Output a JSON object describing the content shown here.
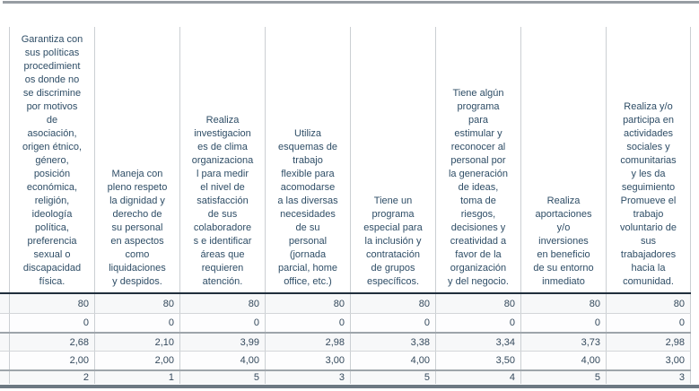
{
  "chart_data": {
    "type": "table",
    "description_visible": "Cropped statistics output table: 8 variable columns, 5 unlabeled statistic rows",
    "columns": [
      "Garantiza con\nsus políticas\nprocedimient\nos donde no\nse discrimine\npor motivos\nde\nasociación,\norigen étnico,\ngénero,\nposición\neconómica,\nreligión,\nideología\npolítica,\npreferencia\nsexual o\ndiscapacidad\nfísica.",
      "Maneja con\npleno respeto\nla dignidad y\nderecho de\nsu personal\nen aspectos\ncomo\nliquidaciones\ny despidos.",
      "Realiza\ninvestigacion\nes de clima\norganizaciona\nl para medir\nel nivel de\nsatisfacción\nde sus\ncolaboradore\ns e identificar\náreas que\nrequieren\natención.",
      "Utiliza\nesquemas de\ntrabajo\nflexible para\nacomodarse\na las diversas\nnecesidades\nde su\npersonal\n(jornada\nparcial, home\noffice, etc.)",
      "Tiene un\nprograma\nespecial para\nla inclusión y\ncontratación\nde grupos\nespecíficos.",
      "Tiene algún\nprograma\npara\nestimular y\nreconocer al\npersonal por\nla generación\nde ideas,\ntoma de\nriesgos,\ndecisiones y\ncreatividad a\nfavor de la\norganización\ny del negocio.",
      "Realiza\naportaciones\ny/o\ninversiones\nen beneficio\nde su entorno\ninmediato",
      "Realiza y/o\nparticipa en\nactividades\nsociales y\ncomunitarias\ny les da\nseguimiento\nPromueve el\ntrabajo\nvoluntario de\nsus\ntrabajadores\nhacia la\ncomunidad."
    ],
    "rows": [
      [
        "80",
        "80",
        "80",
        "80",
        "80",
        "80",
        "80",
        "80"
      ],
      [
        "0",
        "0",
        "0",
        "0",
        "0",
        "0",
        "0",
        "0"
      ],
      [
        "2,68",
        "2,10",
        "3,99",
        "2,98",
        "3,38",
        "3,34",
        "3,73",
        "2,98"
      ],
      [
        "2,00",
        "2,00",
        "4,00",
        "3,00",
        "4,00",
        "3,50",
        "4,00",
        "3,00"
      ],
      [
        "2",
        "1",
        "5",
        "3",
        "5",
        "4",
        "5",
        "3"
      ]
    ],
    "decimal_separator": ",",
    "legend_position": "none",
    "grid": "on"
  },
  "colors": {
    "header_text": "#2e4d66",
    "cell_text": "#34495c",
    "light_rule": "#cbcfd3",
    "thick_row_rule": "#9ea5ab",
    "header_divider": "#202e3c",
    "top_rule": "#979da3",
    "bottom_rule": "#6d7983",
    "row_shade": "#f7f8f9"
  }
}
